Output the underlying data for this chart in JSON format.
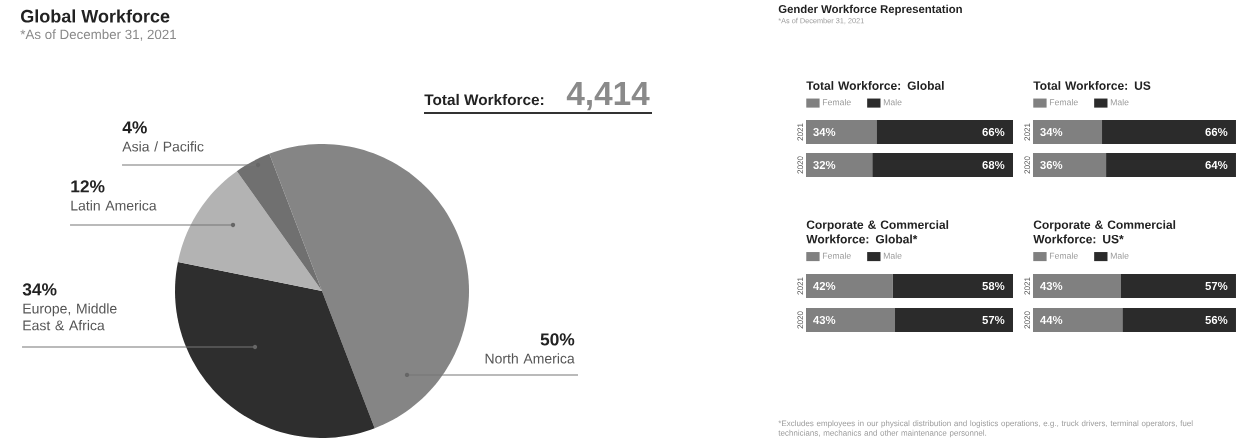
{
  "chart_data": [
    {
      "type": "pie",
      "title": "Global Workforce",
      "subtitle": "*As of December 31, 2021",
      "categories": [
        "North America",
        "Europe, Middle East & Africa",
        "Latin America",
        "Asia / Pacific"
      ],
      "values": [
        50,
        34,
        12,
        4
      ],
      "colors": [
        "#858585",
        "#2e2e2e",
        "#b3b3b3",
        "#707070"
      ],
      "value_labels": [
        "50%",
        "34%",
        "12%",
        "4%"
      ],
      "annotations": [
        "Total Workforce:",
        "4,414"
      ]
    },
    {
      "type": "other",
      "title": "Gender Workforce Representation",
      "subtitle": "*As of December 31, 2021",
      "annotations": [
        "*Excludes employees in our physical distribution and logistics operations, e.g., truck drivers, terminal operators, fuel technicians, mechanics and other maintenance personnel."
      ]
    },
    {
      "type": "bar",
      "orientation": "horizontal",
      "stacked": true,
      "title": "Total Workforce: Global",
      "categories": [
        "2021",
        "2020"
      ],
      "tick_labels": "y",
      "legend": "top left",
      "series": [
        {
          "name": "Female",
          "color": "#808080",
          "values": [
            34,
            32
          ],
          "value_labels": [
            "34%",
            "32%"
          ]
        },
        {
          "name": "Male",
          "color": "#2b2b2b",
          "values": [
            66,
            68
          ],
          "value_labels": [
            "66%",
            "68%"
          ]
        }
      ]
    },
    {
      "type": "bar",
      "orientation": "horizontal",
      "stacked": true,
      "title": "Total Workforce: US",
      "categories": [
        "2021",
        "2020"
      ],
      "tick_labels": "y",
      "legend": "top left",
      "series": [
        {
          "name": "Female",
          "color": "#808080",
          "values": [
            34,
            36
          ],
          "value_labels": [
            "34%",
            "36%"
          ]
        },
        {
          "name": "Male",
          "color": "#2b2b2b",
          "values": [
            66,
            64
          ],
          "value_labels": [
            "66%",
            "64%"
          ]
        }
      ]
    },
    {
      "type": "bar",
      "orientation": "horizontal",
      "stacked": true,
      "title": "Corporate & Commercial Workforce: Global*",
      "categories": [
        "2021",
        "2020"
      ],
      "tick_labels": "y",
      "legend": "top left",
      "series": [
        {
          "name": "Female",
          "color": "#808080",
          "values": [
            42,
            43
          ],
          "value_labels": [
            "42%",
            "43%"
          ]
        },
        {
          "name": "Male",
          "color": "#2b2b2b",
          "values": [
            58,
            57
          ],
          "value_labels": [
            "58%",
            "57%"
          ]
        }
      ]
    },
    {
      "type": "bar",
      "orientation": "horizontal",
      "stacked": true,
      "title": "Corporate & Commercial Workforce: US*",
      "categories": [
        "2021",
        "2020"
      ],
      "tick_labels": "y",
      "legend": "top left",
      "series": [
        {
          "name": "Female",
          "color": "#808080",
          "values": [
            43,
            44
          ],
          "value_labels": [
            "43%",
            "44%"
          ]
        },
        {
          "name": "Male",
          "color": "#2b2b2b",
          "values": [
            57,
            56
          ],
          "value_labels": [
            "57%",
            "56%"
          ]
        }
      ]
    }
  ]
}
